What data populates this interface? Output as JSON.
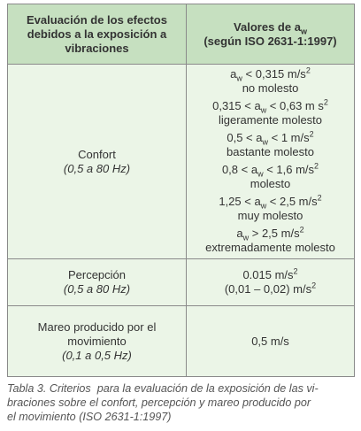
{
  "table": {
    "header": {
      "left": [
        "Evaluación de los efectos",
        "debidos a la exposición a",
        "vibraciones"
      ],
      "right": [
        [
          {
            "t": "Valores de a"
          },
          {
            "sub": "w"
          }
        ],
        [
          {
            "t": "(según ISO 2631-1:1997)"
          }
        ]
      ]
    },
    "rows": [
      {
        "left": {
          "lines": [
            "Confort"
          ],
          "range": "(0,5 a 80 Hz)"
        },
        "right": [
          {
            "value": [
              {
                "t": "a"
              },
              {
                "sub": "w"
              },
              {
                "t": " < 0,315 m/s"
              },
              {
                "sup": "2"
              }
            ],
            "desc": "no molesto"
          },
          {
            "value": [
              {
                "t": "0,315 < a"
              },
              {
                "sub": "w"
              },
              {
                "t": " < 0,63 m s"
              },
              {
                "sup": "2"
              }
            ],
            "desc": "ligeramente molesto"
          },
          {
            "value": [
              {
                "t": "0,5 < a"
              },
              {
                "sub": "w"
              },
              {
                "t": " < 1 m/s"
              },
              {
                "sup": "2"
              }
            ],
            "desc": "bastante molesto"
          },
          {
            "value": [
              {
                "t": "0,8 < a"
              },
              {
                "sub": "w"
              },
              {
                "t": " < 1,6 m/s"
              },
              {
                "sup": "2"
              }
            ],
            "desc": "molesto"
          },
          {
            "value": [
              {
                "t": "1,25 < a"
              },
              {
                "sub": "w"
              },
              {
                "t": " < 2,5 m/s"
              },
              {
                "sup": "2"
              }
            ],
            "desc": "muy molesto"
          },
          {
            "value": [
              {
                "t": "a"
              },
              {
                "sub": "w"
              },
              {
                "t": " > 2,5 m/s"
              },
              {
                "sup": "2"
              }
            ],
            "desc": "extremadamente molesto"
          }
        ]
      },
      {
        "left": {
          "lines": [
            "Percepción"
          ],
          "range": "(0,5 a 80 Hz)"
        },
        "right": [
          {
            "value": [
              {
                "t": "0.015 m/s"
              },
              {
                "sup": "2"
              }
            ]
          },
          {
            "value": [
              {
                "t": "(0,01 – 0,02) m/s"
              },
              {
                "sup": "2"
              }
            ]
          }
        ]
      },
      {
        "left": {
          "lines": [
            "Mareo producido por el",
            "movimiento"
          ],
          "range": "(0,1 a 0,5 Hz)"
        },
        "right": [
          {
            "value": [
              {
                "t": "0,5 m/s"
              }
            ]
          }
        ]
      }
    ]
  },
  "caption": [
    "Tabla 3. Criterios  para la evaluación de la exposición de las vi-",
    "braciones sobre el confort, percepción y mareo producido por",
    "el movimiento (ISO 2631-1:1997)"
  ]
}
